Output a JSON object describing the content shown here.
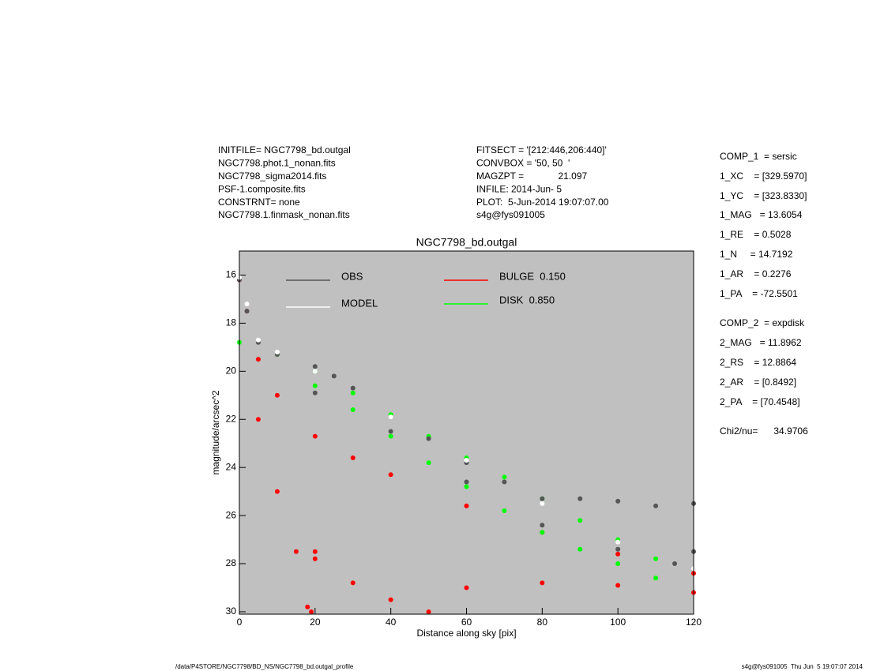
{
  "header": {
    "left": [
      "INITFILE= NGC7798_bd.outgal",
      "NGC7798.phot.1_nonan.fits",
      "NGC7798_sigma2014.fits",
      "PSF-1.composite.fits",
      "CONSTRNT= none",
      "NGC7798.1.finmask_nonan.fits"
    ],
    "middle": [
      "FITSECT = '[212:446,206:440]'",
      "CONVBOX = '50, 50  '",
      "MAGZPT =             21.097",
      "INFILE: 2014-Jun- 5",
      "PLOT:  5-Jun-2014 19:07:07.00",
      "s4g@fys091005"
    ]
  },
  "params": [
    "COMP_1  = sersic",
    "1_XC    = [329.5970]",
    "1_YC    = [323.8330]",
    "1_MAG   = 13.6054",
    "1_RE    = 0.5028",
    "1_N     = 14.7192",
    "1_AR    = 0.2276",
    "1_PA    = -72.5501",
    "COMP_2  = expdisk",
    "2_MAG   = 11.8962",
    "2_RS    = 12.8864",
    "2_AR    = [0.8492]",
    "2_PA    = [70.4548]",
    "Chi2/nu=      34.9706"
  ],
  "footer": {
    "left": "/data/P4STORE/NGC7798/BD_NS/NGC7798_bd.outgal_profile",
    "right": "s4g@fys091005  Thu Jun  5 19:07:07 2014"
  },
  "chart_data": {
    "type": "scatter",
    "title": "NGC7798_bd.outgal",
    "x_label": "Distance along sky [pix]",
    "y_label": "magnitude/arcsec^2",
    "xlim": [
      0,
      120
    ],
    "xticks": [
      0,
      20,
      40,
      60,
      80,
      100,
      120
    ],
    "ylim": [
      30.1,
      15
    ],
    "yticks": [
      16,
      18,
      20,
      22,
      24,
      26,
      28,
      30
    ],
    "background": "#c0c0c0",
    "series": [
      {
        "name": "BULGE  0.150",
        "color": "#ff0000",
        "x": [
          0,
          2,
          5,
          10,
          20,
          30,
          40,
          60,
          80,
          100,
          120,
          5,
          10,
          15,
          18,
          19,
          20,
          20,
          30,
          40,
          50,
          60,
          80,
          100,
          120
        ],
        "values": [
          16.2,
          17.5,
          19.5,
          21.0,
          22.7,
          23.6,
          24.3,
          25.6,
          26.7,
          27.6,
          28.4,
          22.0,
          25.0,
          27.5,
          29.8,
          30.0,
          27.8,
          27.5,
          28.8,
          29.5,
          30.0,
          29.0,
          28.8,
          28.9,
          29.2
        ]
      },
      {
        "name": "DISK  0.850",
        "color": "#00ff00",
        "x": [
          0,
          10,
          20,
          30,
          40,
          50,
          60,
          70,
          80,
          90,
          100,
          110,
          20,
          30,
          40,
          50,
          60,
          70,
          80,
          90,
          100,
          110
        ],
        "values": [
          18.8,
          19.3,
          20.0,
          20.9,
          21.8,
          22.7,
          23.6,
          24.4,
          25.3,
          26.2,
          27.0,
          27.8,
          20.6,
          21.6,
          22.7,
          23.8,
          24.8,
          25.8,
          26.7,
          27.4,
          28.0,
          28.6
        ]
      },
      {
        "name": "OBS",
        "color": "#555555",
        "x": [
          0,
          2,
          5,
          10,
          20,
          25,
          30,
          40,
          50,
          60,
          70,
          80,
          90,
          100,
          110,
          120,
          20,
          40,
          60,
          80,
          100,
          115,
          120
        ],
        "values": [
          16.2,
          17.5,
          18.8,
          19.3,
          19.8,
          20.2,
          20.7,
          21.9,
          22.8,
          23.8,
          24.6,
          25.3,
          25.3,
          25.4,
          25.6,
          25.5,
          20.9,
          22.5,
          24.6,
          26.4,
          27.4,
          28.0,
          27.5
        ]
      },
      {
        "name": "MODEL",
        "color": "#ffffff",
        "x": [
          0,
          2,
          5,
          10,
          20,
          40,
          60,
          80,
          100,
          120
        ],
        "values": [
          16.1,
          17.2,
          18.7,
          19.2,
          20.0,
          21.9,
          23.7,
          25.5,
          27.1,
          28.2
        ]
      }
    ]
  }
}
